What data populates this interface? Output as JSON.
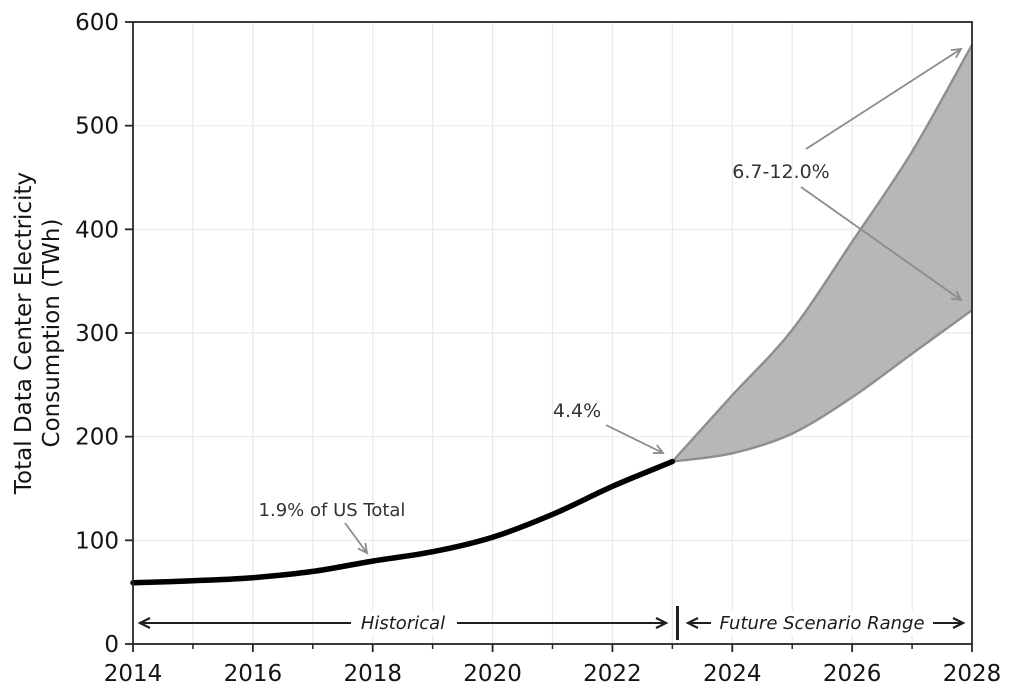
{
  "chart_data": {
    "type": "line",
    "title": "",
    "ylabel": "Total Data Center Electricity Consumption (TWh)",
    "ylabel_lines": [
      "Total Data Center Electricity",
      "Consumption (TWh)"
    ],
    "xlabel": "",
    "xlim": [
      2014,
      2028
    ],
    "ylim": [
      0,
      600
    ],
    "x_major_ticks": [
      2014,
      2016,
      2018,
      2020,
      2022,
      2024,
      2026,
      2028
    ],
    "x_minor_ticks": [
      2015,
      2017,
      2019,
      2021,
      2023,
      2025,
      2027
    ],
    "y_ticks": [
      0,
      100,
      200,
      300,
      400,
      500,
      600
    ],
    "grid": true,
    "grid_years": [
      2015,
      2016,
      2017,
      2018,
      2019,
      2020,
      2021,
      2022,
      2023,
      2024,
      2025,
      2026,
      2027
    ],
    "series": [
      {
        "name": "Historical",
        "type": "line",
        "x": [
          2014,
          2015,
          2016,
          2017,
          2018,
          2019,
          2020,
          2021,
          2022,
          2023
        ],
        "y": [
          59,
          61,
          64,
          70,
          80,
          89,
          103,
          125,
          152,
          176
        ]
      },
      {
        "name": "Future Scenario Range",
        "type": "band",
        "x": [
          2023,
          2024,
          2025,
          2026,
          2027,
          2028
        ],
        "upper": [
          176,
          240,
          303,
          388,
          475,
          578
        ],
        "lower": [
          176,
          184,
          203,
          238,
          280,
          322
        ]
      }
    ],
    "annotations": {
      "point_2018": {
        "label": "1.9% of US Total",
        "year": 2018,
        "value": 80
      },
      "point_2023": {
        "label": "4.4%",
        "year": 2023,
        "value": 176
      },
      "range_2028": {
        "label": "6.7-12.0%",
        "year": 2028,
        "lower": 322,
        "upper": 578
      },
      "historical_span": {
        "label": "Historical",
        "from": 2014,
        "to": 2023
      },
      "future_span": {
        "label": "Future Scenario Range",
        "from": 2023,
        "to": 2028
      }
    },
    "legend": "none"
  },
  "colors": {
    "background": "#ffffff",
    "historical_line": "#000000",
    "band_fill": "#b7b7b7",
    "band_edge": "#8e8e8e",
    "annotation_arrow": "#8c8c8c",
    "span_arrow": "#1f1f1f",
    "axis": "#262626",
    "grid": "#e9e9e9",
    "tick_text": "#141414"
  }
}
